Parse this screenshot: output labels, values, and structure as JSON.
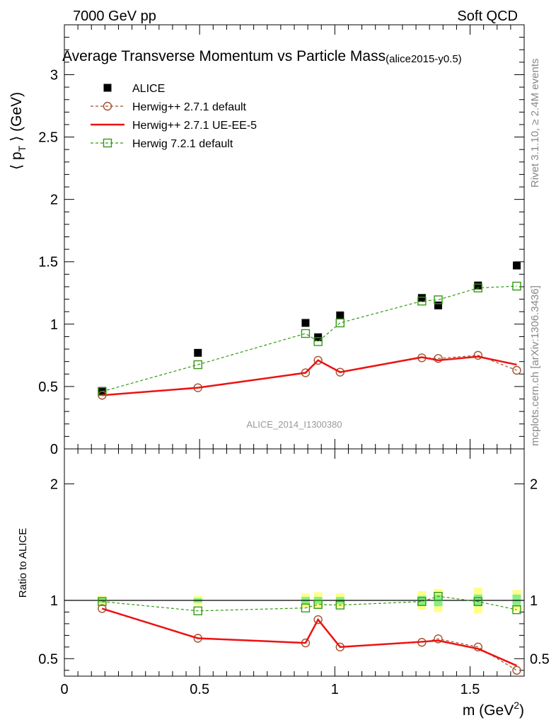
{
  "header": {
    "left": "7000 GeV pp",
    "right": "Soft QCD"
  },
  "title": {
    "main": "Average Transverse Momentum vs Particle Mass",
    "tag": "(alice2015-y0.5)"
  },
  "side_labels": {
    "rivet": "Rivet 3.1.10, ≥ 2.4M events",
    "mcplots": "mcplots.cern.ch [arXiv:1306.3436]"
  },
  "watermark": "ALICE_2014_I1300380",
  "colors": {
    "data": "#000000",
    "herwigpp_default": "#a0522d",
    "herwigpp_ueee5": "#ee1111",
    "herwig7": "#339911",
    "band_inner": "#88ee88",
    "band_outer": "#ffff88"
  },
  "chart_data": [
    {
      "type": "line",
      "panel": "main",
      "ylabel_main": "⟨ p",
      "ylabel_sub": "T",
      "ylabel_end": " ⟩ (GeV)",
      "xlim": [
        0,
        1.7
      ],
      "ylim": [
        0,
        3.4
      ],
      "y_ticks": [
        0,
        0.5,
        1,
        1.5,
        2,
        2.5,
        3
      ],
      "y_tick_labels": [
        "0",
        "0.5",
        "1",
        "1.5",
        "2",
        "2.5",
        "3"
      ],
      "legend_position": "top-left",
      "x": [
        0.1396,
        0.4937,
        0.8917,
        0.938,
        1.0195,
        1.3217,
        1.3822,
        1.5294,
        1.6725
      ],
      "series": [
        {
          "name": "ALICE",
          "style": "data",
          "values": [
            0.465,
            0.77,
            1.01,
            0.895,
            1.07,
            1.21,
            1.15,
            1.31,
            1.47
          ]
        },
        {
          "name": "Herwig++ 2.7.1 default",
          "style": "herwigpp_default",
          "values": [
            0.43,
            0.49,
            0.61,
            0.71,
            0.615,
            0.73,
            0.725,
            0.75,
            0.63
          ]
        },
        {
          "name": "Herwig++ 2.7.1 UE-EE-5",
          "style": "herwigpp_ueee5",
          "values": [
            0.43,
            0.49,
            0.61,
            0.71,
            0.615,
            0.735,
            0.71,
            0.74,
            0.675
          ]
        },
        {
          "name": "Herwig 7.2.1 default",
          "style": "herwig7",
          "values": [
            0.46,
            0.675,
            0.925,
            0.86,
            1.01,
            1.185,
            1.195,
            1.29,
            1.305
          ]
        }
      ]
    },
    {
      "type": "line",
      "panel": "ratio",
      "ylabel": "Ratio to ALICE",
      "xlabel_main": "m (GeV",
      "xlabel_sup": "2",
      "xlabel_end": ")",
      "xlim": [
        0,
        1.7
      ],
      "ylim": [
        0.35,
        2.3
      ],
      "y_ticks": [
        0.5,
        1,
        2
      ],
      "y_tick_labels": [
        "0.5",
        "1",
        "2"
      ],
      "x_ticks": [
        0,
        0.5,
        1,
        1.5
      ],
      "x_tick_labels": [
        "0",
        "0.5",
        "1",
        "1.5"
      ],
      "reference_line": 1,
      "x": [
        0.1396,
        0.4937,
        0.8917,
        0.938,
        1.0195,
        1.3217,
        1.3822,
        1.5294,
        1.6725
      ],
      "bands": {
        "inner_halfwidth": [
          0.02,
          0.02,
          0.03,
          0.03,
          0.03,
          0.04,
          0.05,
          0.05,
          0.05
        ],
        "outer_halfwidth": [
          0.04,
          0.04,
          0.06,
          0.07,
          0.06,
          0.08,
          0.1,
          0.11,
          0.09
        ]
      },
      "series": [
        {
          "name": "Herwig++ 2.7.1 default",
          "style": "herwigpp_default",
          "values": [
            0.93,
            0.675,
            0.635,
            0.835,
            0.6,
            0.64,
            0.67,
            0.6,
            0.4
          ]
        },
        {
          "name": "Herwig++ 2.7.1 UE-EE-5",
          "style": "herwigpp_ueee5",
          "values": [
            0.93,
            0.675,
            0.635,
            0.835,
            0.6,
            0.645,
            0.655,
            0.585,
            0.44
          ]
        },
        {
          "name": "Herwig 7.2.1 default",
          "style": "herwig7",
          "values": [
            0.99,
            0.91,
            0.935,
            0.965,
            0.96,
            0.99,
            1.035,
            0.99,
            0.92
          ]
        }
      ]
    }
  ]
}
